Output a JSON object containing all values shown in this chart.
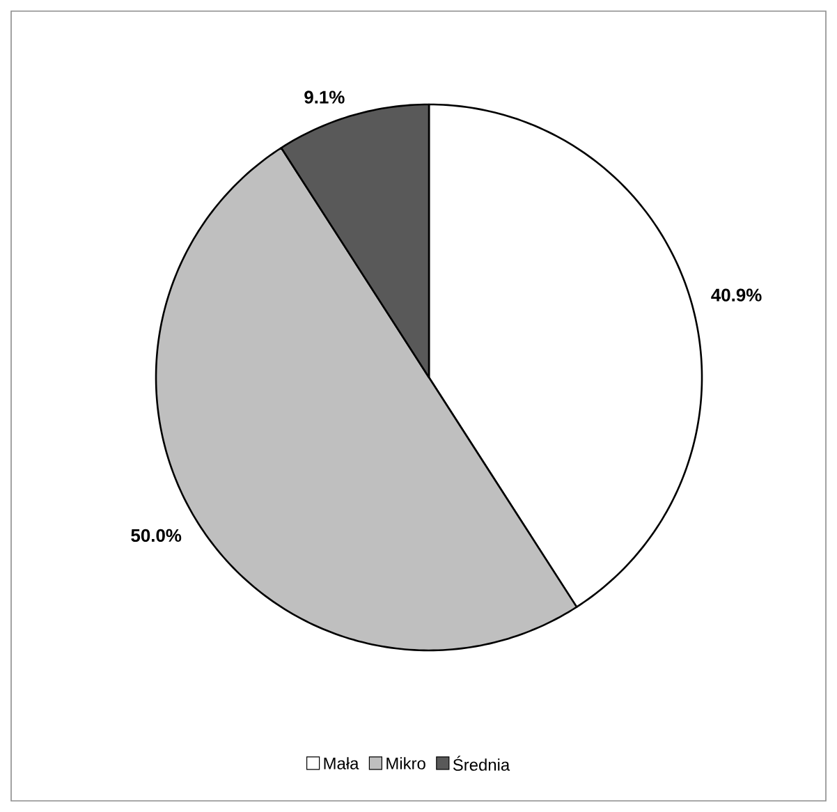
{
  "chart_data": {
    "type": "pie",
    "categories": [
      "Mała",
      "Mikro",
      "Średnia"
    ],
    "values": [
      40.9,
      50.0,
      9.1
    ],
    "colors": [
      "#ffffff",
      "#bfbfbf",
      "#595959"
    ],
    "value_labels": [
      "40.9%",
      "50.0%",
      "9.1%"
    ],
    "legend": "bottom"
  }
}
